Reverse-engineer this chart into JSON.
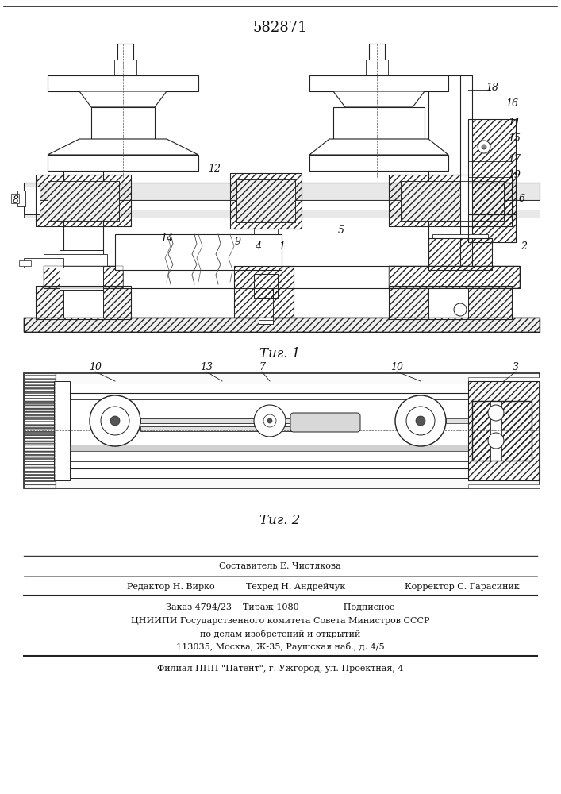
{
  "patent_number": "582871",
  "fig1_caption": "Τиг. 1",
  "fig2_caption": "Τиг. 2",
  "bg_color": "#ffffff",
  "line_color": "#222222",
  "text_color": "#111111",
  "footer": {
    "line1": "Составитель Е. Чистякова",
    "line2_left": "Редактор Н. Вирко",
    "line2_mid": "Техред Н. Андрейчук",
    "line2_right": "Корректор С. Гарасиник",
    "line3": "Заказ 4794/23    Тираж 1080                Подписное",
    "line4": "ЦНИИПИ Государственного комитета Совета Министров СССР",
    "line5": "по делам изобретений и открытий",
    "line6": "113035, Москва, Ж-35, Раушская наб., д. 4/5",
    "line7": "Филиал ППП \"Патент\", г. Ужгород, ул. Проектная, 4"
  }
}
